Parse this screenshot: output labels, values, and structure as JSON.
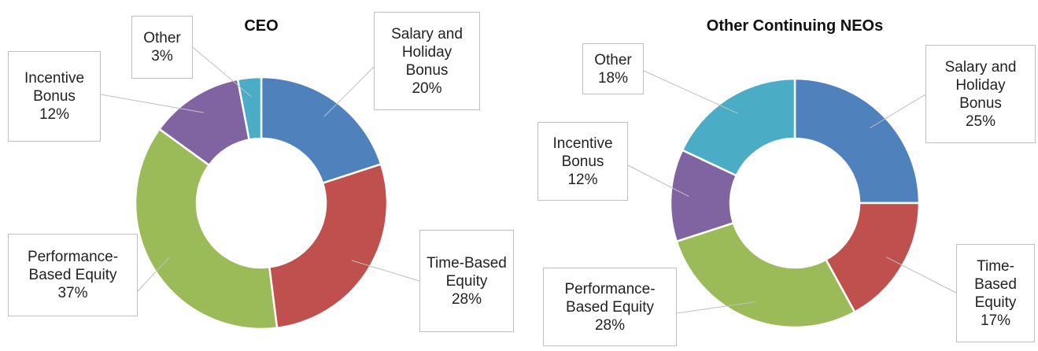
{
  "chart_data": [
    {
      "type": "pie",
      "title": "CEO",
      "categories": [
        "Salary and Holiday Bonus",
        "Time-Based Equity",
        "Performance-Based Equity",
        "Incentive Bonus",
        "Other"
      ],
      "values": [
        20,
        28,
        37,
        12,
        3
      ],
      "value_labels": [
        "20%",
        "28%",
        "37%",
        "12%",
        "3%"
      ],
      "colors": [
        "#4f81bd",
        "#c0504d",
        "#9bbb59",
        "#8064a2",
        "#4bacc6"
      ]
    },
    {
      "type": "pie",
      "title": "Other Continuing NEOs",
      "categories": [
        "Salary and Holiday Bonus",
        "Time-Based Equity",
        "Performance-Based Equity",
        "Incentive Bonus",
        "Other"
      ],
      "values": [
        25,
        17,
        28,
        12,
        18
      ],
      "value_labels": [
        "25%",
        "17%",
        "28%",
        "12%",
        "18%"
      ],
      "colors": [
        "#4f81bd",
        "#c0504d",
        "#9bbb59",
        "#8064a2",
        "#4bacc6"
      ]
    }
  ]
}
